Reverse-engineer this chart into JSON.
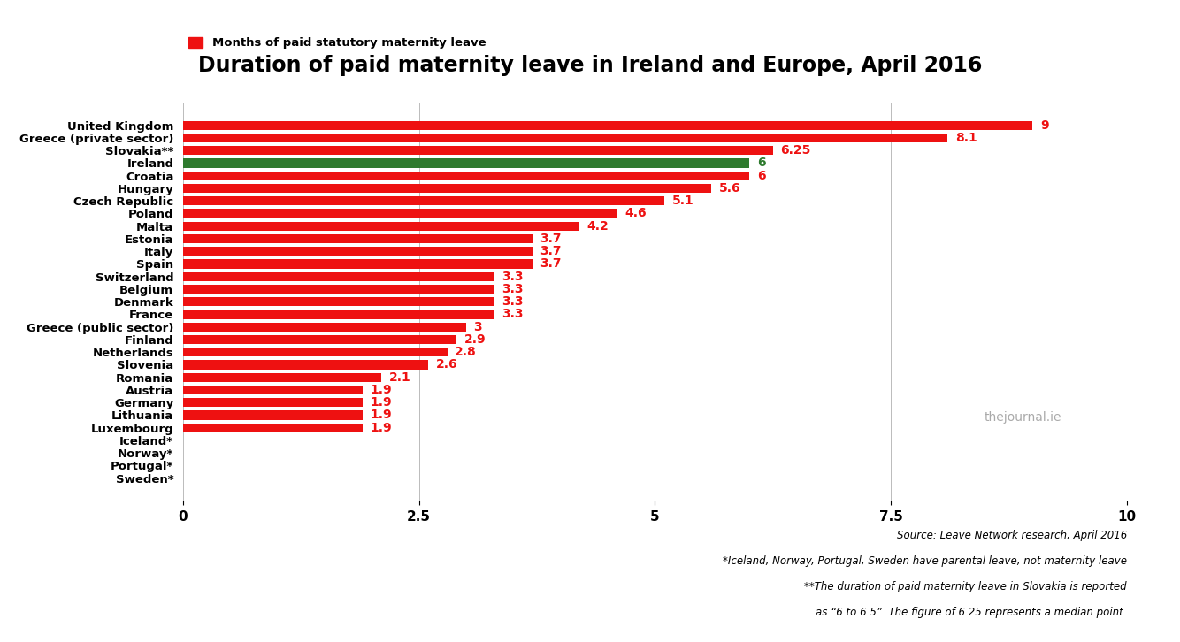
{
  "title": "Duration of paid maternity leave in Ireland and Europe, April 2016",
  "legend_label": "Months of paid statutory maternity leave",
  "categories": [
    "United Kingdom",
    "Greece (private sector)",
    "Slovakia**",
    "Ireland",
    "Croatia",
    "Hungary",
    "Czech Republic",
    "Poland",
    "Malta",
    "Estonia",
    "Italy",
    "Spain",
    "Switzerland",
    "Belgium",
    "Denmark",
    "France",
    "Greece (public sector)",
    "Finland",
    "Netherlands",
    "Slovenia",
    "Romania",
    "Austria",
    "Germany",
    "Lithuania",
    "Luxembourg",
    "Iceland*",
    "Norway*",
    "Portugal*",
    "Sweden*"
  ],
  "values": [
    9,
    8.1,
    6.25,
    6,
    6,
    5.6,
    5.1,
    4.6,
    4.2,
    3.7,
    3.7,
    3.7,
    3.3,
    3.3,
    3.3,
    3.3,
    3,
    2.9,
    2.8,
    2.6,
    2.1,
    1.9,
    1.9,
    1.9,
    1.9,
    0,
    0,
    0,
    0
  ],
  "bar_color_default": "#ee1111",
  "bar_color_ireland": "#2e7a2e",
  "ireland_index": 3,
  "value_color": "#ee1111",
  "ireland_value_color": "#2e7a2e",
  "xlim": [
    0,
    10
  ],
  "xticks": [
    0,
    2.5,
    5,
    7.5,
    10
  ],
  "source_text": "Source: Leave Network research, April 2016",
  "footnote1": "*Iceland, Norway, Portugal, Sweden have parental leave, not maternity leave",
  "footnote2": "**The duration of paid maternity leave in Slovakia is reported",
  "footnote3": "as “6 to 6.5”. The figure of 6.25 represents a median point.",
  "watermark": "thejournal.ie",
  "bg_color": "#ffffff"
}
